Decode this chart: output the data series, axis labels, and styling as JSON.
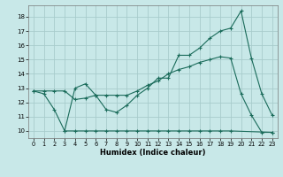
{
  "xlabel": "Humidex (Indice chaleur)",
  "bg_color": "#c8e8e8",
  "grid_color": "#a8cccc",
  "line_color": "#1a6b5a",
  "xlim": [
    -0.5,
    23.5
  ],
  "ylim": [
    9.5,
    18.8
  ],
  "yticks": [
    10,
    11,
    12,
    13,
    14,
    15,
    16,
    17,
    18
  ],
  "xticks": [
    0,
    1,
    2,
    3,
    4,
    5,
    6,
    7,
    8,
    9,
    10,
    11,
    12,
    13,
    14,
    15,
    16,
    17,
    18,
    19,
    20,
    21,
    22,
    23
  ],
  "line1_x": [
    0,
    1,
    2,
    3,
    4,
    5,
    6,
    7,
    8,
    9,
    10,
    11,
    12,
    13,
    14,
    15,
    16,
    17,
    18,
    19,
    20,
    21,
    22,
    23
  ],
  "line1_y": [
    12.8,
    12.6,
    11.5,
    10.0,
    13.0,
    13.3,
    12.5,
    11.5,
    11.3,
    11.8,
    12.5,
    13.0,
    13.7,
    13.7,
    15.3,
    15.3,
    15.8,
    16.5,
    17.0,
    17.2,
    18.4,
    15.1,
    12.6,
    11.1
  ],
  "line2_x": [
    0,
    1,
    2,
    3,
    4,
    5,
    6,
    7,
    8,
    9,
    10,
    11,
    12,
    13,
    14,
    15,
    16,
    17,
    18,
    19,
    20,
    21,
    22,
    23
  ],
  "line2_y": [
    12.8,
    12.8,
    12.8,
    12.8,
    12.2,
    12.3,
    12.5,
    12.5,
    12.5,
    12.5,
    12.8,
    13.2,
    13.5,
    14.0,
    14.3,
    14.5,
    14.8,
    15.0,
    15.2,
    15.1,
    12.6,
    11.1,
    9.9,
    9.9
  ],
  "line3_x": [
    3,
    4,
    5,
    6,
    7,
    8,
    9,
    10,
    11,
    12,
    13,
    14,
    15,
    16,
    17,
    18,
    19,
    23
  ],
  "line3_y": [
    10.0,
    10.0,
    10.0,
    10.0,
    10.0,
    10.0,
    10.0,
    10.0,
    10.0,
    10.0,
    10.0,
    10.0,
    10.0,
    10.0,
    10.0,
    10.0,
    10.0,
    9.9
  ]
}
